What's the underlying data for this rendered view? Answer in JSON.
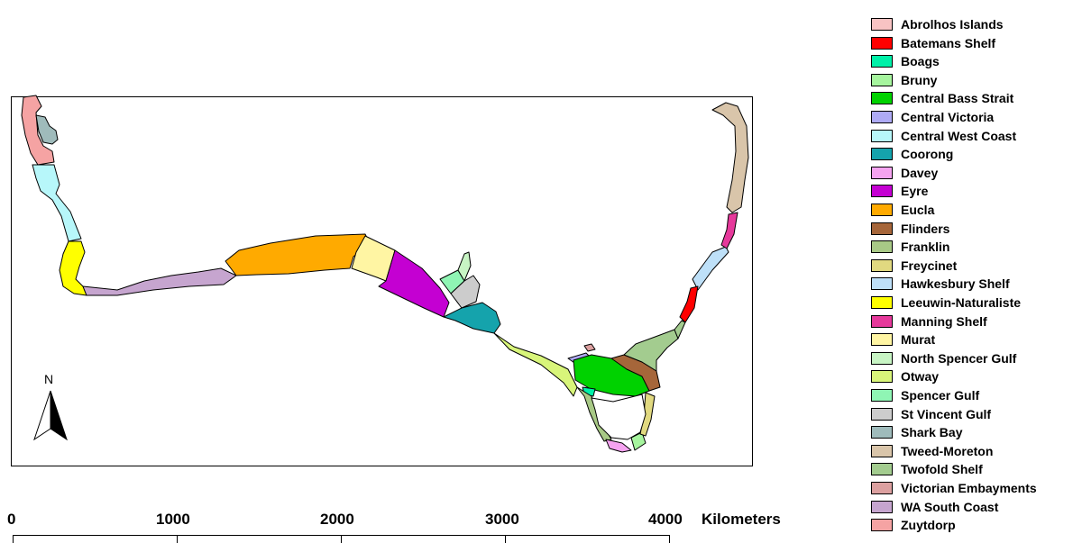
{
  "legend": [
    {
      "label": "Abrolhos Islands",
      "color": "#f8c3c3"
    },
    {
      "label": "Batemans Shelf",
      "color": "#ff0000"
    },
    {
      "label": "Boags",
      "color": "#00f0a8"
    },
    {
      "label": "Bruny",
      "color": "#a6f59e"
    },
    {
      "label": "Central Bass Strait",
      "color": "#00d200"
    },
    {
      "label": "Central Victoria",
      "color": "#aeaaf5"
    },
    {
      "label": "Central West Coast",
      "color": "#b7f7fa"
    },
    {
      "label": "Coorong",
      "color": "#15a3ac"
    },
    {
      "label": "Davey",
      "color": "#f5a3f0"
    },
    {
      "label": "Eyre",
      "color": "#c400d2"
    },
    {
      "label": "Eucla",
      "color": "#ffaa00"
    },
    {
      "label": "Flinders",
      "color": "#a6663a"
    },
    {
      "label": "Franklin",
      "color": "#a8c986"
    },
    {
      "label": "Freycinet",
      "color": "#e1d980"
    },
    {
      "label": "Hawkesbury Shelf",
      "color": "#bee0f8"
    },
    {
      "label": "Leeuwin-Naturaliste",
      "color": "#ffff00"
    },
    {
      "label": "Manning Shelf",
      "color": "#e6399b"
    },
    {
      "label": "Murat",
      "color": "#fff5a3"
    },
    {
      "label": "North Spencer Gulf",
      "color": "#c8f5c4"
    },
    {
      "label": "Otway",
      "color": "#d8f57a"
    },
    {
      "label": "Spencer Gulf",
      "color": "#8ff5b4"
    },
    {
      "label": "St Vincent Gulf",
      "color": "#cccccc"
    },
    {
      "label": "Shark Bay",
      "color": "#9fbbbb"
    },
    {
      "label": "Tweed-Moreton",
      "color": "#d9c5aa"
    },
    {
      "label": "Twofold Shelf",
      "color": "#a3cc8f"
    },
    {
      "label": "Victorian Embayments",
      "color": "#dca0a0"
    },
    {
      "label": "WA South Coast",
      "color": "#c6a5cf"
    },
    {
      "label": "Zuytdorp",
      "color": "#f5a3a3"
    }
  ],
  "scale_bar": {
    "ticks": [
      "0",
      "1000",
      "2000",
      "3000",
      "4000"
    ],
    "unit": "Kilometers"
  },
  "north_arrow": {
    "label": "N"
  }
}
